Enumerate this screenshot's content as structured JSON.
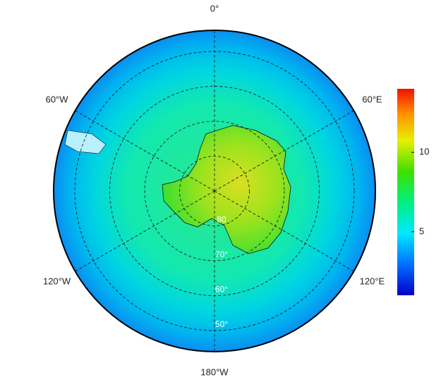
{
  "map": {
    "meridians": [
      {
        "value": 0,
        "label": "0°"
      },
      {
        "value": 60,
        "label": "60°E"
      },
      {
        "value": 120,
        "label": "120°E"
      },
      {
        "value": 180,
        "label": "180°W"
      },
      {
        "value": -120,
        "label": "120°W"
      },
      {
        "value": -60,
        "label": "60°W"
      }
    ],
    "parallels": [
      {
        "value": -80,
        "label": "80"
      },
      {
        "value": -70,
        "label": "70°"
      },
      {
        "value": -60,
        "label": "60°"
      },
      {
        "value": -50,
        "label": "50°"
      }
    ],
    "colorbar": {
      "range": [
        1,
        14
      ],
      "ticks": [
        5,
        10
      ]
    }
  }
}
